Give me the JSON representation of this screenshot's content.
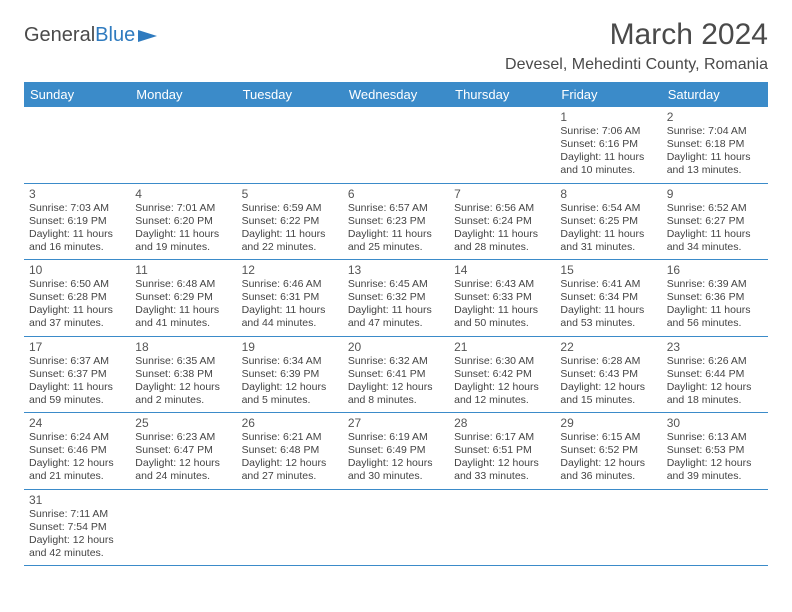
{
  "logo": {
    "text1": "General",
    "text2": "Blue"
  },
  "title": "March 2024",
  "location": "Devesel, Mehedinti County, Romania",
  "colors": {
    "header_bg": "#3b8bc9",
    "header_text": "#ffffff",
    "border": "#3b8bc9",
    "text": "#444444",
    "title": "#4a4a4a"
  },
  "weekdays": [
    "Sunday",
    "Monday",
    "Tuesday",
    "Wednesday",
    "Thursday",
    "Friday",
    "Saturday"
  ],
  "rows": [
    [
      null,
      null,
      null,
      null,
      null,
      {
        "day": "1",
        "sunrise": "Sunrise: 7:06 AM",
        "sunset": "Sunset: 6:16 PM",
        "daylight1": "Daylight: 11 hours",
        "daylight2": "and 10 minutes."
      },
      {
        "day": "2",
        "sunrise": "Sunrise: 7:04 AM",
        "sunset": "Sunset: 6:18 PM",
        "daylight1": "Daylight: 11 hours",
        "daylight2": "and 13 minutes."
      }
    ],
    [
      {
        "day": "3",
        "sunrise": "Sunrise: 7:03 AM",
        "sunset": "Sunset: 6:19 PM",
        "daylight1": "Daylight: 11 hours",
        "daylight2": "and 16 minutes."
      },
      {
        "day": "4",
        "sunrise": "Sunrise: 7:01 AM",
        "sunset": "Sunset: 6:20 PM",
        "daylight1": "Daylight: 11 hours",
        "daylight2": "and 19 minutes."
      },
      {
        "day": "5",
        "sunrise": "Sunrise: 6:59 AM",
        "sunset": "Sunset: 6:22 PM",
        "daylight1": "Daylight: 11 hours",
        "daylight2": "and 22 minutes."
      },
      {
        "day": "6",
        "sunrise": "Sunrise: 6:57 AM",
        "sunset": "Sunset: 6:23 PM",
        "daylight1": "Daylight: 11 hours",
        "daylight2": "and 25 minutes."
      },
      {
        "day": "7",
        "sunrise": "Sunrise: 6:56 AM",
        "sunset": "Sunset: 6:24 PM",
        "daylight1": "Daylight: 11 hours",
        "daylight2": "and 28 minutes."
      },
      {
        "day": "8",
        "sunrise": "Sunrise: 6:54 AM",
        "sunset": "Sunset: 6:25 PM",
        "daylight1": "Daylight: 11 hours",
        "daylight2": "and 31 minutes."
      },
      {
        "day": "9",
        "sunrise": "Sunrise: 6:52 AM",
        "sunset": "Sunset: 6:27 PM",
        "daylight1": "Daylight: 11 hours",
        "daylight2": "and 34 minutes."
      }
    ],
    [
      {
        "day": "10",
        "sunrise": "Sunrise: 6:50 AM",
        "sunset": "Sunset: 6:28 PM",
        "daylight1": "Daylight: 11 hours",
        "daylight2": "and 37 minutes."
      },
      {
        "day": "11",
        "sunrise": "Sunrise: 6:48 AM",
        "sunset": "Sunset: 6:29 PM",
        "daylight1": "Daylight: 11 hours",
        "daylight2": "and 41 minutes."
      },
      {
        "day": "12",
        "sunrise": "Sunrise: 6:46 AM",
        "sunset": "Sunset: 6:31 PM",
        "daylight1": "Daylight: 11 hours",
        "daylight2": "and 44 minutes."
      },
      {
        "day": "13",
        "sunrise": "Sunrise: 6:45 AM",
        "sunset": "Sunset: 6:32 PM",
        "daylight1": "Daylight: 11 hours",
        "daylight2": "and 47 minutes."
      },
      {
        "day": "14",
        "sunrise": "Sunrise: 6:43 AM",
        "sunset": "Sunset: 6:33 PM",
        "daylight1": "Daylight: 11 hours",
        "daylight2": "and 50 minutes."
      },
      {
        "day": "15",
        "sunrise": "Sunrise: 6:41 AM",
        "sunset": "Sunset: 6:34 PM",
        "daylight1": "Daylight: 11 hours",
        "daylight2": "and 53 minutes."
      },
      {
        "day": "16",
        "sunrise": "Sunrise: 6:39 AM",
        "sunset": "Sunset: 6:36 PM",
        "daylight1": "Daylight: 11 hours",
        "daylight2": "and 56 minutes."
      }
    ],
    [
      {
        "day": "17",
        "sunrise": "Sunrise: 6:37 AM",
        "sunset": "Sunset: 6:37 PM",
        "daylight1": "Daylight: 11 hours",
        "daylight2": "and 59 minutes."
      },
      {
        "day": "18",
        "sunrise": "Sunrise: 6:35 AM",
        "sunset": "Sunset: 6:38 PM",
        "daylight1": "Daylight: 12 hours",
        "daylight2": "and 2 minutes."
      },
      {
        "day": "19",
        "sunrise": "Sunrise: 6:34 AM",
        "sunset": "Sunset: 6:39 PM",
        "daylight1": "Daylight: 12 hours",
        "daylight2": "and 5 minutes."
      },
      {
        "day": "20",
        "sunrise": "Sunrise: 6:32 AM",
        "sunset": "Sunset: 6:41 PM",
        "daylight1": "Daylight: 12 hours",
        "daylight2": "and 8 minutes."
      },
      {
        "day": "21",
        "sunrise": "Sunrise: 6:30 AM",
        "sunset": "Sunset: 6:42 PM",
        "daylight1": "Daylight: 12 hours",
        "daylight2": "and 12 minutes."
      },
      {
        "day": "22",
        "sunrise": "Sunrise: 6:28 AM",
        "sunset": "Sunset: 6:43 PM",
        "daylight1": "Daylight: 12 hours",
        "daylight2": "and 15 minutes."
      },
      {
        "day": "23",
        "sunrise": "Sunrise: 6:26 AM",
        "sunset": "Sunset: 6:44 PM",
        "daylight1": "Daylight: 12 hours",
        "daylight2": "and 18 minutes."
      }
    ],
    [
      {
        "day": "24",
        "sunrise": "Sunrise: 6:24 AM",
        "sunset": "Sunset: 6:46 PM",
        "daylight1": "Daylight: 12 hours",
        "daylight2": "and 21 minutes."
      },
      {
        "day": "25",
        "sunrise": "Sunrise: 6:23 AM",
        "sunset": "Sunset: 6:47 PM",
        "daylight1": "Daylight: 12 hours",
        "daylight2": "and 24 minutes."
      },
      {
        "day": "26",
        "sunrise": "Sunrise: 6:21 AM",
        "sunset": "Sunset: 6:48 PM",
        "daylight1": "Daylight: 12 hours",
        "daylight2": "and 27 minutes."
      },
      {
        "day": "27",
        "sunrise": "Sunrise: 6:19 AM",
        "sunset": "Sunset: 6:49 PM",
        "daylight1": "Daylight: 12 hours",
        "daylight2": "and 30 minutes."
      },
      {
        "day": "28",
        "sunrise": "Sunrise: 6:17 AM",
        "sunset": "Sunset: 6:51 PM",
        "daylight1": "Daylight: 12 hours",
        "daylight2": "and 33 minutes."
      },
      {
        "day": "29",
        "sunrise": "Sunrise: 6:15 AM",
        "sunset": "Sunset: 6:52 PM",
        "daylight1": "Daylight: 12 hours",
        "daylight2": "and 36 minutes."
      },
      {
        "day": "30",
        "sunrise": "Sunrise: 6:13 AM",
        "sunset": "Sunset: 6:53 PM",
        "daylight1": "Daylight: 12 hours",
        "daylight2": "and 39 minutes."
      }
    ],
    [
      {
        "day": "31",
        "sunrise": "Sunrise: 7:11 AM",
        "sunset": "Sunset: 7:54 PM",
        "daylight1": "Daylight: 12 hours",
        "daylight2": "and 42 minutes."
      },
      null,
      null,
      null,
      null,
      null,
      null
    ]
  ]
}
